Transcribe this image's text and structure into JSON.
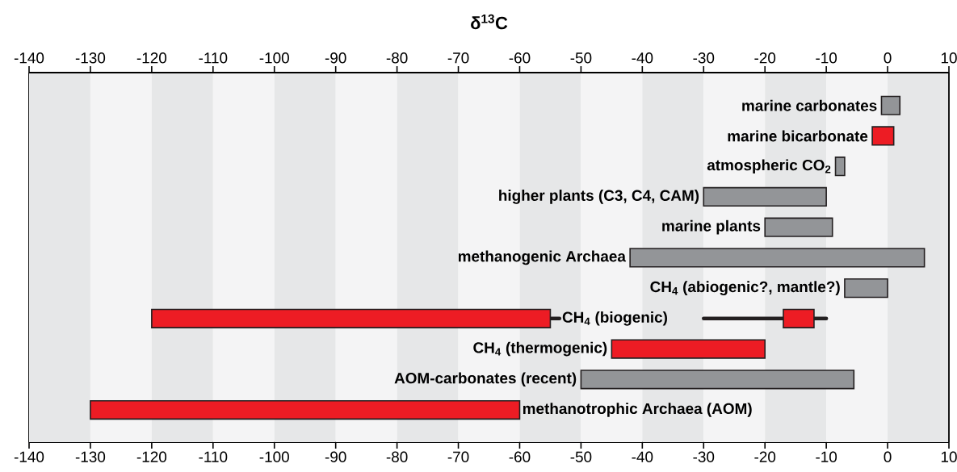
{
  "chart_data": {
    "type": "bar",
    "orientation": "horizontal",
    "title": "δ$^{13}$C",
    "categories": [
      "marine carbonates",
      "marine bicarbonate",
      "atmospheric CO$_{2}$",
      "higher plants (C3, C4, CAM)",
      "marine plants",
      "methanogenic Archaea",
      "CH$_{4}$ (abiogenic?, mantle?)",
      "CH$_{4}$ (biogenic)",
      "CH$_{4}$ (thermogenic)",
      "AOM-carbonates (recent)",
      "methanotrophic Archaea (AOM)"
    ],
    "series": [
      {
        "base": [
          -1,
          -2.5,
          -8.5,
          -30,
          -20,
          -42,
          -7,
          -120,
          -45,
          -50,
          -130
        ],
        "values": [
          3,
          3.5,
          1.5,
          20,
          11,
          48,
          7,
          65,
          25,
          44.5,
          70
        ],
        "colors": [
          "#939598",
          "#ed1c24",
          "#939598",
          "#939598",
          "#939598",
          "#939598",
          "#939598",
          "#ed1c24",
          "#ed1c24",
          "#939598",
          "#ed1c24"
        ],
        "errors": [
          null,
          null,
          null,
          null,
          null,
          null,
          null,
          [
            -55,
            -53.5
          ],
          null,
          null,
          null
        ]
      },
      {
        "color": "#ed1c24",
        "base": [
          null,
          null,
          null,
          null,
          null,
          null,
          null,
          -17,
          null,
          null,
          null
        ],
        "values": [
          null,
          null,
          null,
          null,
          null,
          null,
          null,
          5,
          null,
          null,
          null
        ],
        "errors": [
          null,
          null,
          null,
          null,
          null,
          null,
          null,
          [
            -30,
            -10
          ],
          null,
          null,
          null
        ]
      }
    ],
    "xlim": [
      -140,
      10
    ],
    "xticks": [
      -140,
      -130,
      -120,
      -110,
      -100,
      -90,
      -80,
      -70,
      -60,
      -50,
      -40,
      -30,
      -20,
      -10,
      0,
      10
    ],
    "x2lim": [
      -140,
      10
    ],
    "x2ticks": [
      -140,
      -130,
      -120,
      -110,
      -100,
      -90,
      -80,
      -70,
      -60,
      -50,
      -40,
      -30,
      -20,
      -10,
      0,
      10
    ],
    "bands": [
      {
        "axis": "x",
        "from": -140,
        "to": -130,
        "color": "#e6e7e8"
      },
      {
        "axis": "x",
        "from": -130,
        "to": -120,
        "color": "#f4f4f5"
      },
      {
        "axis": "x",
        "from": -120,
        "to": -110,
        "color": "#e6e7e8"
      },
      {
        "axis": "x",
        "from": -110,
        "to": -100,
        "color": "#f4f4f5"
      },
      {
        "axis": "x",
        "from": -100,
        "to": -90,
        "color": "#e6e7e8"
      },
      {
        "axis": "x",
        "from": -90,
        "to": -80,
        "color": "#f4f4f5"
      },
      {
        "axis": "x",
        "from": -80,
        "to": -70,
        "color": "#e6e7e8"
      },
      {
        "axis": "x",
        "from": -70,
        "to": -60,
        "color": "#f4f4f5"
      },
      {
        "axis": "x",
        "from": -60,
        "to": -50,
        "color": "#e6e7e8"
      },
      {
        "axis": "x",
        "from": -50,
        "to": -40,
        "color": "#f4f4f5"
      },
      {
        "axis": "x",
        "from": -40,
        "to": -30,
        "color": "#e6e7e8"
      },
      {
        "axis": "x",
        "from": -30,
        "to": -20,
        "color": "#f4f4f5"
      },
      {
        "axis": "x",
        "from": -20,
        "to": -10,
        "color": "#e6e7e8"
      },
      {
        "axis": "x",
        "from": -10,
        "to": 0,
        "color": "#f4f4f5"
      },
      {
        "axis": "x",
        "from": 0,
        "to": 10,
        "color": "#e6e7e8"
      }
    ]
  }
}
